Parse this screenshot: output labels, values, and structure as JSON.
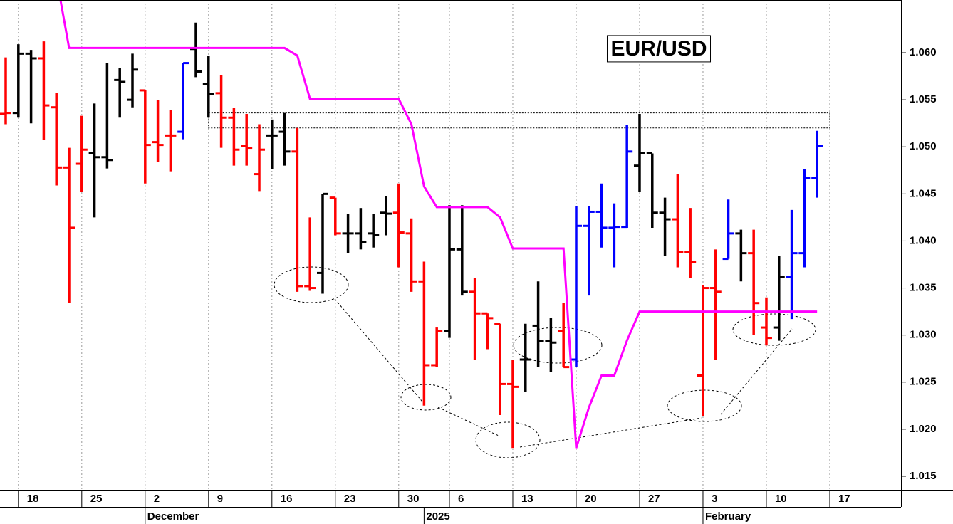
{
  "chart_data": {
    "type": "ohlc",
    "title": "EUR/USD",
    "x": [
      0,
      1,
      2,
      3,
      4,
      5,
      6,
      7,
      8,
      9,
      10,
      11,
      12,
      13,
      14,
      15,
      16,
      17,
      18,
      19,
      20,
      21,
      22,
      23,
      24,
      25,
      26,
      27,
      28,
      29,
      30,
      31,
      32,
      33,
      34,
      35,
      36,
      37,
      38,
      39,
      40,
      41,
      42,
      43,
      44,
      45,
      46,
      47,
      48,
      49,
      50,
      51,
      52,
      53,
      54,
      55,
      56,
      57,
      58,
      59,
      60,
      61,
      62,
      63,
      64
    ],
    "open": [
      1.0535,
      1.0536,
      1.0599,
      1.0594,
      1.0542,
      1.0478,
      1.0482,
      1.0493,
      1.0489,
      1.0571,
      1.055,
      1.056,
      1.0505,
      1.0512,
      1.0516,
      1.0604,
      1.0567,
      1.0557,
      1.0531,
      1.0501,
      1.0471,
      1.0512,
      1.0516,
      1.0495,
      1.0352,
      1.0366,
      1.0446,
      1.0408,
      1.0408,
      1.0408,
      1.043,
      1.043,
      1.0408,
      1.0357,
      1.0268,
      1.0304,
      1.0391,
      1.0346,
      1.0323,
      1.0312,
      1.0248,
      1.0274,
      1.031,
      1.0294,
      1.0304,
      1.0274,
      1.0416,
      1.0431,
      1.0414,
      1.0415,
      1.048,
      1.0493,
      1.043,
      1.0423,
      1.0388,
      1.0257,
      1.035,
      1.0381,
      1.0408,
      1.0387,
      1.0308,
      1.0308,
      1.0362,
      1.0387,
      1.0467
    ],
    "high": [
      1.0595,
      1.0609,
      1.0603,
      1.0612,
      1.0557,
      1.0499,
      1.0533,
      1.0546,
      1.0589,
      1.0584,
      1.0599,
      1.056,
      1.055,
      1.0539,
      1.0589,
      1.0632,
      1.0597,
      1.0576,
      1.0541,
      1.0535,
      1.0524,
      1.0529,
      1.0536,
      1.052,
      1.0425,
      1.045,
      1.0446,
      1.0429,
      1.0435,
      1.0429,
      1.0448,
      1.0461,
      1.0424,
      1.0378,
      1.0308,
      1.0438,
      1.0438,
      1.0361,
      1.0323,
      1.0312,
      1.0274,
      1.0312,
      1.0357,
      1.0318,
      1.0334,
      1.0437,
      1.0437,
      1.0461,
      1.044,
      1.0523,
      1.0535,
      1.0493,
      1.0446,
      1.0471,
      1.0435,
      1.0353,
      1.0391,
      1.0444,
      1.0412,
      1.0412,
      1.034,
      1.0384,
      1.0433,
      1.0476,
      1.0517
    ],
    "low": [
      1.0524,
      1.0531,
      1.0525,
      1.0507,
      1.0459,
      1.0334,
      1.0452,
      1.0425,
      1.0477,
      1.0531,
      1.0542,
      1.0461,
      1.0484,
      1.0474,
      1.0508,
      1.0574,
      1.0531,
      1.0499,
      1.048,
      1.048,
      1.0453,
      1.0476,
      1.048,
      1.0346,
      1.0347,
      1.0344,
      1.0406,
      1.0387,
      1.0391,
      1.0393,
      1.0406,
      1.0372,
      1.0346,
      1.0225,
      1.0266,
      1.0297,
      1.0342,
      1.0274,
      1.0285,
      1.0215,
      1.018,
      1.024,
      1.0266,
      1.0261,
      1.0266,
      1.0266,
      1.0342,
      1.0393,
      1.0372,
      1.0414,
      1.0452,
      1.0414,
      1.0384,
      1.0372,
      1.0361,
      1.0214,
      1.0274,
      1.0381,
      1.0357,
      1.03,
      1.0289,
      1.0294,
      1.0317,
      1.0372,
      1.0446
    ],
    "close": [
      1.0536,
      1.0599,
      1.0594,
      1.0544,
      1.0478,
      1.0414,
      1.0497,
      1.0489,
      1.0486,
      1.0569,
      1.0582,
      1.0502,
      1.0502,
      1.0512,
      1.0589,
      1.058,
      1.0556,
      1.0531,
      1.0497,
      1.0499,
      1.0497,
      1.0512,
      1.0495,
      1.0352,
      1.035,
      1.045,
      1.0408,
      1.0408,
      1.0399,
      1.0406,
      1.0429,
      1.0409,
      1.0357,
      1.0268,
      1.0304,
      1.0391,
      1.0346,
      1.0323,
      1.0318,
      1.0248,
      1.0245,
      1.0274,
      1.0294,
      1.0292,
      1.0266,
      1.0416,
      1.0431,
      1.0414,
      1.0415,
      1.0495,
      1.0493,
      1.043,
      1.0423,
      1.0388,
      1.0378,
      1.035,
      1.0346,
      1.0408,
      1.0387,
      1.0334,
      1.0297,
      1.0362,
      1.0387,
      1.0467,
      1.0501
    ],
    "colors": [
      "red",
      "black",
      "black",
      "red",
      "red",
      "red",
      "red",
      "black",
      "black",
      "black",
      "black",
      "red",
      "red",
      "red",
      "blue",
      "black",
      "black",
      "red",
      "red",
      "red",
      "red",
      "black",
      "black",
      "red",
      "red",
      "black",
      "red",
      "black",
      "black",
      "black",
      "black",
      "red",
      "red",
      "red",
      "red",
      "black",
      "black",
      "red",
      "red",
      "red",
      "red",
      "black",
      "black",
      "black",
      "red",
      "blue",
      "blue",
      "blue",
      "blue",
      "blue",
      "black",
      "black",
      "black",
      "red",
      "red",
      "red",
      "red",
      "blue",
      "black",
      "red",
      "red",
      "black",
      "blue",
      "blue",
      "blue"
    ],
    "stop_line": {
      "color": "#ff00ff",
      "values": [
        null,
        null,
        null,
        null,
        1.068,
        1.0605,
        1.0605,
        1.0605,
        1.0605,
        1.0605,
        1.0605,
        1.0605,
        1.0605,
        1.0605,
        1.0605,
        1.0605,
        1.0605,
        1.0605,
        1.0605,
        1.0605,
        1.0605,
        1.0605,
        1.0605,
        1.0597,
        1.0551,
        1.0551,
        1.0551,
        1.0551,
        1.0551,
        1.0551,
        1.0551,
        1.0551,
        1.0524,
        1.0458,
        1.0436,
        1.0436,
        1.0436,
        1.0436,
        1.0436,
        1.0425,
        1.0392,
        1.0392,
        1.0392,
        1.0392,
        1.0392,
        1.018,
        1.0223,
        1.0257,
        1.0257,
        1.0294,
        1.0325,
        1.0325,
        1.0325,
        1.0325,
        1.0325,
        1.0325,
        1.0325,
        1.0325,
        1.0325,
        1.0325,
        1.0325,
        1.0325,
        1.0325,
        1.0325,
        1.0325
      ]
    },
    "resistance_zone": {
      "x": [
        16,
        65
      ],
      "y": [
        1.052,
        1.0536
      ]
    },
    "xlim": [
      -0.45,
      70.62
    ],
    "ylim": [
      1.01356,
      1.0656
    ],
    "xticks": [
      {
        "value": 1,
        "label": "18"
      },
      {
        "value": 6,
        "label": "25"
      },
      {
        "value": 11,
        "label": "2"
      },
      {
        "value": 16,
        "label": "9"
      },
      {
        "value": 21,
        "label": "16"
      },
      {
        "value": 26,
        "label": "23"
      },
      {
        "value": 31,
        "label": "30"
      },
      {
        "value": 35,
        "label": "6"
      },
      {
        "value": 40,
        "label": "13"
      },
      {
        "value": 45,
        "label": "20"
      },
      {
        "value": 50,
        "label": "27"
      },
      {
        "value": 55,
        "label": "3"
      },
      {
        "value": 60,
        "label": "10"
      },
      {
        "value": 65,
        "label": "17"
      }
    ],
    "month_ticks": [
      {
        "value": 11,
        "label": "December"
      },
      {
        "value": 33,
        "label": "2025"
      },
      {
        "value": 55,
        "label": "February"
      }
    ],
    "yticks": [
      1.015,
      {
        "value": 1.02,
        "label": "1.020"
      },
      1.025,
      {
        "value": 1.03,
        "label": "1.030"
      },
      1.035,
      {
        "value": 1.04,
        "label": "1.040"
      },
      1.045,
      {
        "value": 1.05,
        "label": "1.050"
      },
      1.055,
      {
        "value": 1.06,
        "label": "1.060"
      }
    ],
    "grid": true
  }
}
